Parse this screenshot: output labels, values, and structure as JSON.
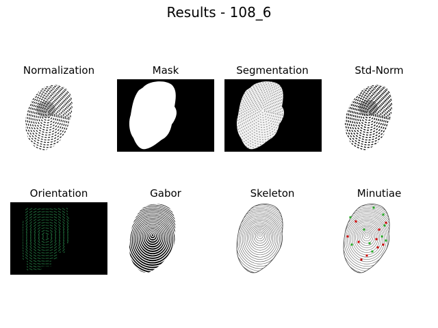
{
  "figure": {
    "title": "Results - 108_6"
  },
  "panels": [
    {
      "id": "normalization",
      "title": "Normalization"
    },
    {
      "id": "mask",
      "title": "Mask"
    },
    {
      "id": "segmentation",
      "title": "Segmentation"
    },
    {
      "id": "std-norm",
      "title": "Std-Norm"
    },
    {
      "id": "orientation",
      "title": "Orientation"
    },
    {
      "id": "gabor",
      "title": "Gabor"
    },
    {
      "id": "skeleton",
      "title": "Skeleton"
    },
    {
      "id": "minutiae",
      "title": "Minutiae"
    }
  ],
  "colors": {
    "background": "#ffffff",
    "image_black": "#000000",
    "orientation_lines": "#1f6b3a",
    "minutiae_end": "#cc0000",
    "minutiae_bifurcation": "#22aa22"
  }
}
